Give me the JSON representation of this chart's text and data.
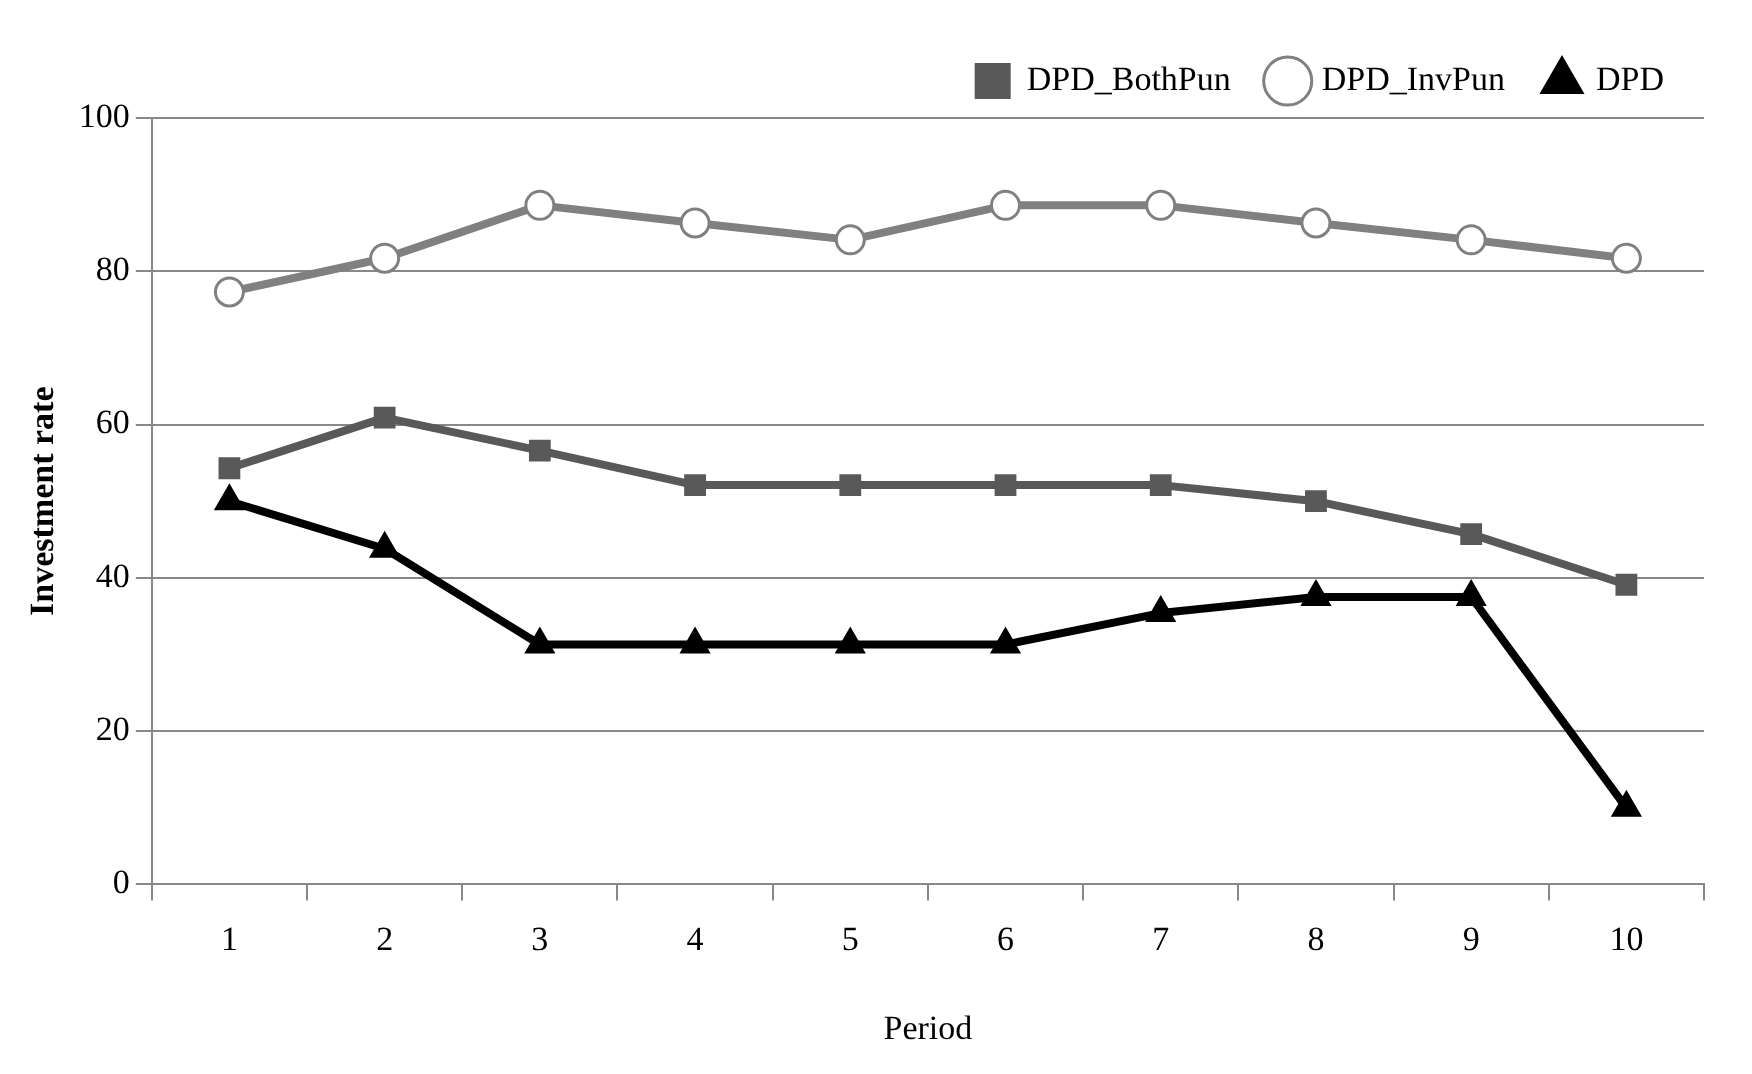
{
  "chart_data": {
    "type": "line",
    "xlabel": "Period",
    "ylabel": "Investment rate",
    "categories": [
      "1",
      "2",
      "3",
      "4",
      "5",
      "6",
      "7",
      "8",
      "9",
      "10"
    ],
    "series": [
      {
        "name": "DPD_BothPun",
        "color": "#595959",
        "marker": "square",
        "values": [
          54.3,
          60.9,
          56.6,
          52.1,
          52.1,
          52.1,
          52.1,
          50,
          45.7,
          39.1
        ]
      },
      {
        "name": "DPD_InvPun",
        "color": "#808080",
        "marker": "circle",
        "values": [
          77.3,
          81.7,
          88.6,
          86.3,
          84.1,
          88.6,
          88.6,
          86.3,
          84.1,
          81.7
        ]
      },
      {
        "name": "DPD",
        "color": "#000000",
        "marker": "triangle",
        "values": [
          50,
          43.8,
          31.3,
          31.3,
          31.3,
          31.3,
          35.4,
          37.5,
          37.5,
          10
        ]
      }
    ],
    "ylim": [
      0,
      100
    ],
    "yticks": [
      0,
      20,
      40,
      60,
      80,
      100
    ],
    "grid": "y",
    "legend": "top right",
    "line_style": "solid"
  }
}
